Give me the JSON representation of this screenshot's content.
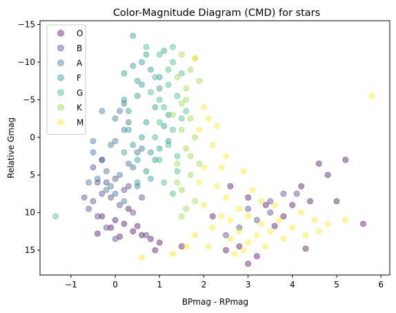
{
  "chart_data": {
    "type": "scatter",
    "title": "Color-Magnitude Diagram (CMD) for stars",
    "xlabel": "BPmag - RPmag",
    "ylabel": "Relative Gmag",
    "xlim": [
      -1.7,
      6.2
    ],
    "ylim": [
      18.3,
      -15.5
    ],
    "y_inverted": true,
    "xticks": [
      -1,
      0,
      1,
      2,
      3,
      4,
      5,
      6
    ],
    "yticks": [
      -15,
      -10,
      -5,
      0,
      5,
      10,
      15
    ],
    "grid": false,
    "legend_position": "top-left",
    "marker_alpha": 0.4,
    "series": [
      {
        "name": "O",
        "color": "#440154",
        "points": [
          [
            0.0,
            11.0
          ],
          [
            -0.1,
            12.0
          ],
          [
            0.2,
            11.5
          ],
          [
            0.4,
            12.5
          ],
          [
            0.6,
            13.0
          ],
          [
            -0.3,
            10.5
          ],
          [
            0.8,
            13.5
          ],
          [
            1.0,
            14.0
          ],
          [
            0.3,
            9.5
          ],
          [
            -0.4,
            12.8
          ],
          [
            0.1,
            13.2
          ],
          [
            0.5,
            11.8
          ],
          [
            3.0,
            8.0
          ],
          [
            3.4,
            9.0
          ],
          [
            3.8,
            10.5
          ],
          [
            4.2,
            6.5
          ],
          [
            4.4,
            8.5
          ],
          [
            4.6,
            3.5
          ],
          [
            4.8,
            5.0
          ],
          [
            5.0,
            8.5
          ],
          [
            5.2,
            3.0
          ],
          [
            5.6,
            11.5
          ],
          [
            3.2,
            15.8
          ],
          [
            3.0,
            16.8
          ],
          [
            2.5,
            15.0
          ],
          [
            2.8,
            14.5
          ],
          [
            1.5,
            14.5
          ],
          [
            0.9,
            15.0
          ],
          [
            4.3,
            14.8
          ],
          [
            3.6,
            11.8
          ],
          [
            2.2,
            10.5
          ],
          [
            2.6,
            6.5
          ],
          [
            4.0,
            9.0
          ]
        ]
      },
      {
        "name": "B",
        "color": "#443983",
        "points": [
          [
            -0.3,
            7.5
          ],
          [
            -0.5,
            8.5
          ],
          [
            -0.2,
            6.0
          ],
          [
            0.0,
            5.5
          ],
          [
            0.2,
            7.0
          ],
          [
            -0.6,
            9.5
          ],
          [
            -0.5,
            4.0
          ],
          [
            -0.3,
            3.0
          ],
          [
            -0.1,
            8.0
          ],
          [
            0.1,
            9.0
          ],
          [
            -0.4,
            10.5
          ],
          [
            0.3,
            6.5
          ],
          [
            0.6,
            8.0
          ],
          [
            0.4,
            10.0
          ],
          [
            -0.2,
            12.0
          ],
          [
            0.0,
            13.5
          ],
          [
            0.7,
            13.0
          ],
          [
            -0.7,
            8.0
          ],
          [
            -0.4,
            6.0
          ],
          [
            2.8,
            12.0
          ],
          [
            3.0,
            9.5
          ],
          [
            3.5,
            8.5
          ],
          [
            3.8,
            7.5
          ],
          [
            3.5,
            10.0
          ],
          [
            4.1,
            7.5
          ],
          [
            2.5,
            13.0
          ],
          [
            3.2,
            11.0
          ]
        ]
      },
      {
        "name": "A",
        "color": "#31688e",
        "points": [
          [
            -0.3,
            3.0
          ],
          [
            -0.1,
            1.0
          ],
          [
            0.0,
            -2.5
          ],
          [
            0.2,
            -4.5
          ],
          [
            -0.5,
            2.0
          ],
          [
            -0.2,
            4.5
          ],
          [
            0.1,
            5.0
          ],
          [
            0.3,
            3.5
          ],
          [
            0.5,
            2.0
          ],
          [
            -0.1,
            6.5
          ],
          [
            -0.4,
            5.5
          ],
          [
            0.2,
            -1.0
          ],
          [
            0.0,
            0.5
          ],
          [
            -0.2,
            7.0
          ],
          [
            0.4,
            4.0
          ],
          [
            0.6,
            1.5
          ],
          [
            0.1,
            -3.5
          ],
          [
            -0.6,
            6.0
          ],
          [
            0.0,
            7.5
          ],
          [
            0.3,
            -2.0
          ],
          [
            -0.3,
            -3.5
          ],
          [
            -0.5,
            0.5
          ],
          [
            0.2,
            8.5
          ],
          [
            0.5,
            6.5
          ]
        ]
      },
      {
        "name": "F",
        "color": "#21918c",
        "points": [
          [
            0.4,
            -13.5
          ],
          [
            0.5,
            -7.5
          ],
          [
            0.6,
            -10.0
          ],
          [
            0.8,
            -9.0
          ],
          [
            0.2,
            -8.5
          ],
          [
            1.1,
            -11.5
          ],
          [
            1.0,
            -6.5
          ],
          [
            0.5,
            -5.5
          ],
          [
            0.3,
            -3.5
          ],
          [
            0.7,
            -2.0
          ],
          [
            0.9,
            -4.0
          ],
          [
            0.6,
            0.0
          ],
          [
            0.8,
            2.0
          ],
          [
            0.4,
            1.0
          ],
          [
            0.5,
            3.0
          ],
          [
            0.7,
            4.5
          ],
          [
            1.0,
            1.5
          ],
          [
            0.3,
            -1.0
          ],
          [
            1.1,
            -1.5
          ],
          [
            0.9,
            3.0
          ],
          [
            0.6,
            -7.0
          ],
          [
            0.2,
            -5.0
          ],
          [
            0.4,
            -9.5
          ],
          [
            0.7,
            -11.0
          ],
          [
            1.2,
            -3.0
          ],
          [
            0.8,
            5.5
          ],
          [
            0.5,
            6.0
          ],
          [
            1.0,
            -8.0
          ],
          [
            0.2,
            2.0
          ],
          [
            1.2,
            0.5
          ]
        ]
      },
      {
        "name": "G",
        "color": "#35b779",
        "points": [
          [
            -1.35,
            10.5
          ],
          [
            0.7,
            -12.0
          ],
          [
            1.0,
            -11.0
          ],
          [
            1.3,
            -10.0
          ],
          [
            0.9,
            -8.0
          ],
          [
            1.2,
            -7.0
          ],
          [
            1.4,
            -5.5
          ],
          [
            1.1,
            -4.0
          ],
          [
            1.0,
            -2.0
          ],
          [
            1.3,
            -1.0
          ],
          [
            1.2,
            1.0
          ],
          [
            1.0,
            3.0
          ],
          [
            1.4,
            4.5
          ],
          [
            1.1,
            6.0
          ],
          [
            1.3,
            7.5
          ],
          [
            0.9,
            0.0
          ],
          [
            1.5,
            -2.5
          ],
          [
            1.2,
            -9.0
          ],
          [
            1.0,
            -5.0
          ],
          [
            1.4,
            2.5
          ],
          [
            1.5,
            -8.5
          ],
          [
            0.8,
            -6.0
          ],
          [
            1.3,
            -12.0
          ],
          [
            1.6,
            -3.5
          ]
        ]
      },
      {
        "name": "K",
        "color": "#90d743",
        "points": [
          [
            1.5,
            -11.0
          ],
          [
            1.7,
            -9.0
          ],
          [
            1.4,
            -8.0
          ],
          [
            1.8,
            -10.5
          ],
          [
            1.6,
            -6.5
          ],
          [
            1.5,
            -4.5
          ],
          [
            1.7,
            -2.5
          ],
          [
            1.5,
            -1.0
          ],
          [
            1.6,
            1.5
          ],
          [
            1.4,
            3.5
          ],
          [
            1.7,
            5.0
          ],
          [
            1.5,
            7.0
          ],
          [
            1.8,
            8.5
          ],
          [
            1.6,
            9.5
          ],
          [
            1.9,
            -7.5
          ],
          [
            1.3,
            -3.0
          ],
          [
            1.8,
            0.0
          ],
          [
            1.4,
            6.0
          ],
          [
            1.7,
            2.5
          ],
          [
            1.6,
            -5.0
          ],
          [
            1.9,
            3.5
          ],
          [
            1.5,
            10.5
          ]
        ]
      },
      {
        "name": "M",
        "color": "#fde725",
        "points": [
          [
            2.0,
            4.0
          ],
          [
            2.3,
            6.5
          ],
          [
            2.5,
            8.0
          ],
          [
            2.8,
            9.5
          ],
          [
            3.0,
            10.5
          ],
          [
            3.3,
            11.5
          ],
          [
            2.2,
            12.0
          ],
          [
            2.6,
            13.5
          ],
          [
            3.0,
            14.0
          ],
          [
            2.4,
            10.5
          ],
          [
            2.8,
            12.5
          ],
          [
            3.5,
            12.5
          ],
          [
            3.2,
            13.0
          ],
          [
            2.0,
            9.0
          ],
          [
            2.1,
            14.5
          ],
          [
            1.8,
            13.0
          ],
          [
            2.7,
            15.5
          ],
          [
            3.4,
            14.5
          ],
          [
            4.0,
            12.0
          ],
          [
            3.8,
            13.5
          ],
          [
            4.2,
            10.0
          ],
          [
            4.5,
            11.0
          ],
          [
            4.8,
            11.5
          ],
          [
            5.8,
            -5.5
          ],
          [
            2.0,
            -4.0
          ],
          [
            1.8,
            -10.5
          ],
          [
            2.3,
            -1.5
          ],
          [
            2.5,
            2.5
          ],
          [
            2.9,
            4.5
          ],
          [
            3.1,
            7.0
          ],
          [
            3.6,
            9.0
          ],
          [
            2.2,
            1.0
          ],
          [
            1.9,
            6.0
          ],
          [
            2.6,
            11.0
          ],
          [
            3.3,
            8.5
          ],
          [
            2.4,
            4.0
          ],
          [
            3.7,
            11.0
          ],
          [
            4.3,
            13.0
          ],
          [
            2.9,
            15.0
          ],
          [
            1.6,
            14.5
          ],
          [
            1.3,
            15.5
          ],
          [
            0.6,
            16.0
          ],
          [
            5.2,
            11.0
          ],
          [
            4.6,
            12.5
          ],
          [
            2.1,
            -2.5
          ],
          [
            1.9,
            -1.0
          ]
        ]
      }
    ]
  }
}
